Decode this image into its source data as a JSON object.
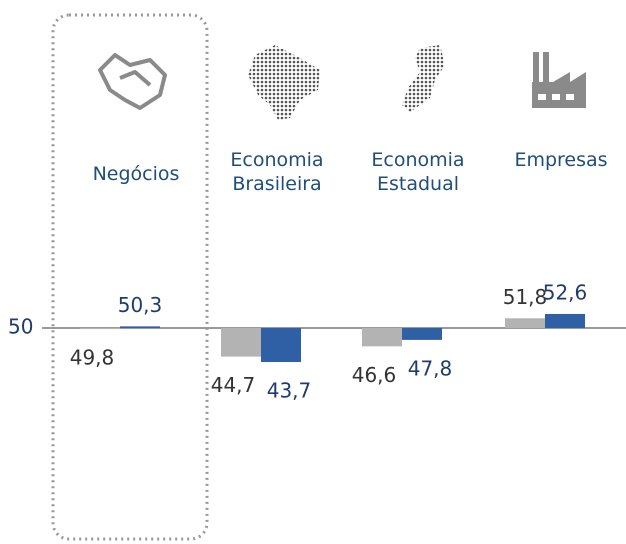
{
  "chart_data": {
    "type": "bar",
    "categories": [
      "Negócios",
      "Economia Brasileira",
      "Economia Estadual",
      "Empresas"
    ],
    "series": [
      {
        "color": "#b3b3b3",
        "values": [
          49.8,
          44.7,
          46.6,
          51.8
        ],
        "value_labels": [
          "49,8",
          "44,7",
          "46,6",
          "51,8"
        ]
      },
      {
        "color": "#2f5fa5",
        "values": [
          50.3,
          43.7,
          47.8,
          52.6
        ],
        "value_labels": [
          "50,3",
          "43,7",
          "47,8",
          "52,6"
        ]
      }
    ],
    "ylim": [
      40,
      60
    ],
    "yticks": [
      50
    ]
  }
}
